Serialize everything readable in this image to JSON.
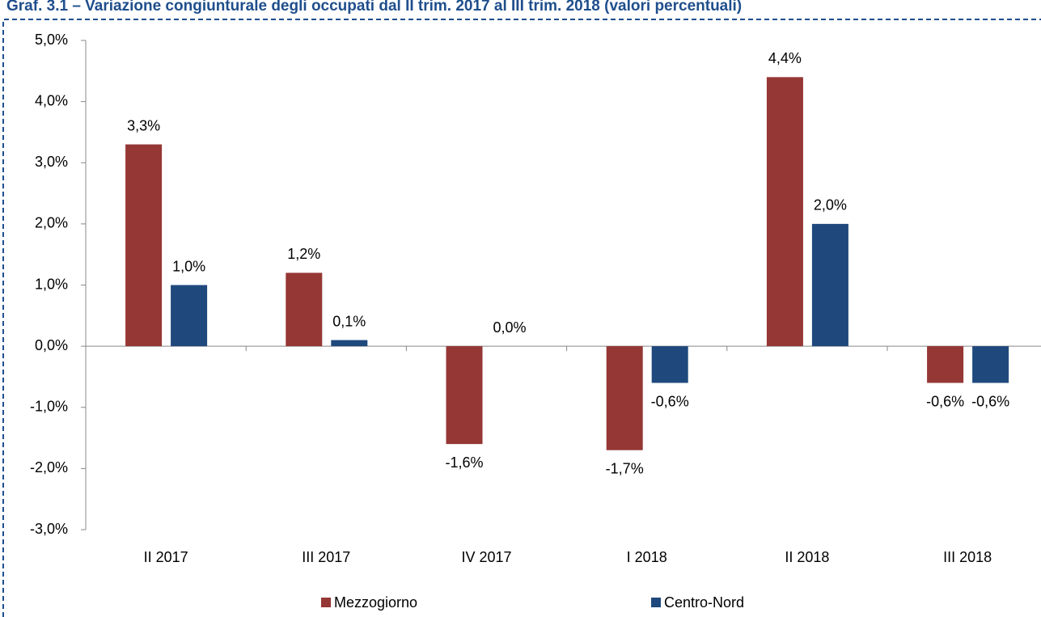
{
  "chart_data": {
    "type": "bar",
    "title": "Graf. 3.1 – Variazione congiunturale degli occupati dal II trim. 2017 al III trim. 2018 (valori percentuali)",
    "categories": [
      "II 2017",
      "III 2017",
      "IV 2017",
      "I 2018",
      "II 2018",
      "III 2018"
    ],
    "series": [
      {
        "name": "Mezzogiorno",
        "color": "#953735",
        "values": [
          3.3,
          1.2,
          -1.6,
          -1.7,
          4.4,
          -0.6
        ],
        "value_labels": [
          "3,3%",
          "1,2%",
          "-1,6%",
          "-1,7%",
          "4,4%",
          "-0,6%"
        ]
      },
      {
        "name": "Centro-Nord",
        "color": "#1f497d",
        "values": [
          1.0,
          0.1,
          0.0,
          -0.6,
          2.0,
          -0.6
        ],
        "value_labels": [
          "1,0%",
          "0,1%",
          "0,0%",
          "-0,6%",
          "2,0%",
          "-0,6%"
        ]
      }
    ],
    "ylim": [
      -3,
      5
    ],
    "yticks": [
      {
        "value": 5,
        "label": "5,0%"
      },
      {
        "value": 4,
        "label": "4,0%"
      },
      {
        "value": 3,
        "label": "3,0%"
      },
      {
        "value": 2,
        "label": "2,0%"
      },
      {
        "value": 1,
        "label": "1,0%"
      },
      {
        "value": 0,
        "label": "0,0%"
      },
      {
        "value": -1,
        "label": "-1,0%"
      },
      {
        "value": -2,
        "label": "-2,0%"
      },
      {
        "value": -3,
        "label": "-3,0%"
      }
    ],
    "legend": "bottom"
  }
}
